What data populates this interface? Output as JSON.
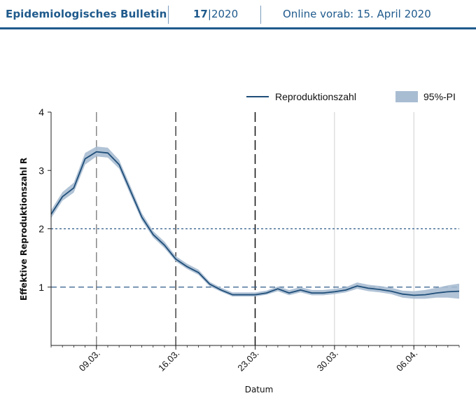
{
  "header": {
    "journal": "Epidemiologisches Bulletin",
    "issue_number": "17",
    "issue_sep": "|",
    "issue_year": "2020",
    "online": "Online vorab: 15. April 2020"
  },
  "colors": {
    "header": "#1f5a8c",
    "line": "#1f4e79",
    "band": "#a9bdd2",
    "ref_line": "#2e5c8a"
  },
  "chart_data": {
    "type": "line",
    "xlabel": "Datum",
    "ylabel": "Effektive Reproduktionszahl R",
    "ylim": [
      0,
      4
    ],
    "yticks": [
      1,
      2,
      3,
      4
    ],
    "xlim": [
      "2020-03-05",
      "2020-04-10"
    ],
    "xticks": [
      {
        "date": "2020-03-09",
        "label": "09.03."
      },
      {
        "date": "2020-03-16",
        "label": "16.03."
      },
      {
        "date": "2020-03-23",
        "label": "23.03."
      },
      {
        "date": "2020-03-30",
        "label": "30.03."
      },
      {
        "date": "2020-04-06",
        "label": "06.04."
      }
    ],
    "reference_lines": [
      1,
      2
    ],
    "intervention_dates": [
      "2020-03-09",
      "2020-03-16",
      "2020-03-23"
    ],
    "legend": {
      "line": "Reproduktionszahl",
      "band": "95%-PI",
      "position": "top-right"
    },
    "series": [
      {
        "name": "Reproduktionszahl",
        "x": [
          "2020-03-05",
          "2020-03-06",
          "2020-03-07",
          "2020-03-08",
          "2020-03-09",
          "2020-03-10",
          "2020-03-11",
          "2020-03-12",
          "2020-03-13",
          "2020-03-14",
          "2020-03-15",
          "2020-03-16",
          "2020-03-17",
          "2020-03-18",
          "2020-03-19",
          "2020-03-20",
          "2020-03-21",
          "2020-03-22",
          "2020-03-23",
          "2020-03-24",
          "2020-03-25",
          "2020-03-26",
          "2020-03-27",
          "2020-03-28",
          "2020-03-29",
          "2020-03-30",
          "2020-03-31",
          "2020-04-01",
          "2020-04-02",
          "2020-04-03",
          "2020-04-04",
          "2020-04-05",
          "2020-04-06",
          "2020-04-07",
          "2020-04-08",
          "2020-04-09",
          "2020-04-10"
        ],
        "y": [
          2.25,
          2.55,
          2.7,
          3.2,
          3.32,
          3.3,
          3.1,
          2.65,
          2.2,
          1.9,
          1.72,
          1.48,
          1.35,
          1.25,
          1.05,
          0.95,
          0.87,
          0.87,
          0.87,
          0.9,
          0.97,
          0.9,
          0.95,
          0.9,
          0.9,
          0.92,
          0.95,
          1.02,
          0.98,
          0.96,
          0.93,
          0.88,
          0.86,
          0.87,
          0.9,
          0.92,
          0.93
        ],
        "lower": [
          2.18,
          2.48,
          2.62,
          3.1,
          3.24,
          3.22,
          3.03,
          2.58,
          2.14,
          1.85,
          1.67,
          1.44,
          1.31,
          1.21,
          1.01,
          0.92,
          0.84,
          0.84,
          0.84,
          0.87,
          0.93,
          0.86,
          0.91,
          0.86,
          0.86,
          0.88,
          0.91,
          0.97,
          0.93,
          0.91,
          0.88,
          0.82,
          0.8,
          0.8,
          0.82,
          0.82,
          0.8
        ],
        "upper": [
          2.32,
          2.63,
          2.79,
          3.3,
          3.41,
          3.39,
          3.18,
          2.73,
          2.27,
          1.96,
          1.78,
          1.53,
          1.4,
          1.3,
          1.09,
          0.99,
          0.91,
          0.91,
          0.91,
          0.94,
          1.01,
          0.95,
          1.0,
          0.95,
          0.95,
          0.97,
          1.0,
          1.08,
          1.04,
          1.02,
          0.99,
          0.94,
          0.93,
          0.95,
          0.99,
          1.03,
          1.06
        ]
      }
    ]
  }
}
